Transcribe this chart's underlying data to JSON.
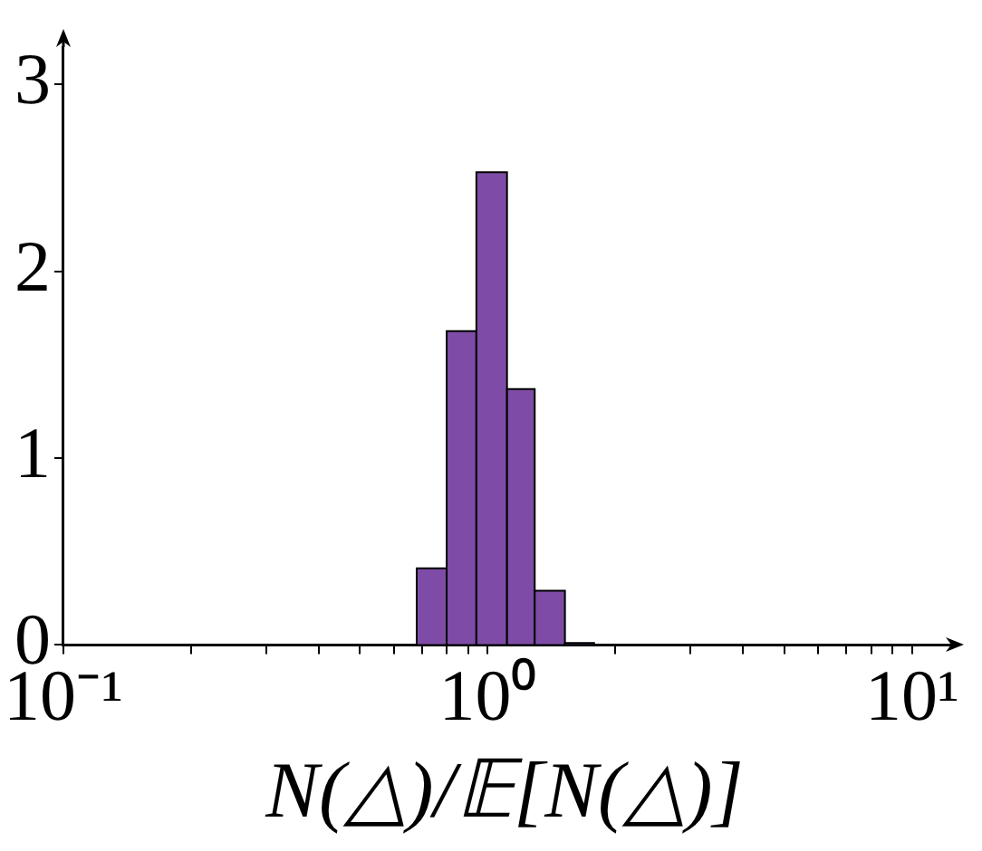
{
  "chart_data": {
    "type": "histogram",
    "xlabel": "N(△)/𝔼[N(△)]",
    "bins": [
      0.68,
      0.8,
      0.94,
      1.11,
      1.29,
      1.52,
      1.78
    ],
    "values": [
      0.41,
      1.68,
      2.53,
      1.37,
      0.29,
      0.01
    ],
    "color": "#7e4ca6",
    "log": "x",
    "xlim": [
      0.1,
      12
    ],
    "xticks": [
      {
        "value": 0.1,
        "label": "10⁻¹"
      },
      {
        "value": 0.2,
        "label": null
      },
      {
        "value": 0.3,
        "label": null
      },
      {
        "value": 0.4,
        "label": null
      },
      {
        "value": 0.5,
        "label": null
      },
      {
        "value": 0.6,
        "label": null
      },
      {
        "value": 0.7,
        "label": null
      },
      {
        "value": 0.8,
        "label": null
      },
      {
        "value": 0.9,
        "label": null
      },
      {
        "value": 1,
        "label": "10⁰"
      },
      {
        "value": 2,
        "label": null
      },
      {
        "value": 3,
        "label": null
      },
      {
        "value": 4,
        "label": null
      },
      {
        "value": 5,
        "label": null
      },
      {
        "value": 6,
        "label": null
      },
      {
        "value": 7,
        "label": null
      },
      {
        "value": 8,
        "label": null
      },
      {
        "value": 9,
        "label": null
      },
      {
        "value": 10,
        "label": "10¹"
      }
    ],
    "ylim": [
      0,
      3.2
    ],
    "yticks": [
      0,
      1,
      2,
      3
    ],
    "grid": false,
    "legend": false
  }
}
